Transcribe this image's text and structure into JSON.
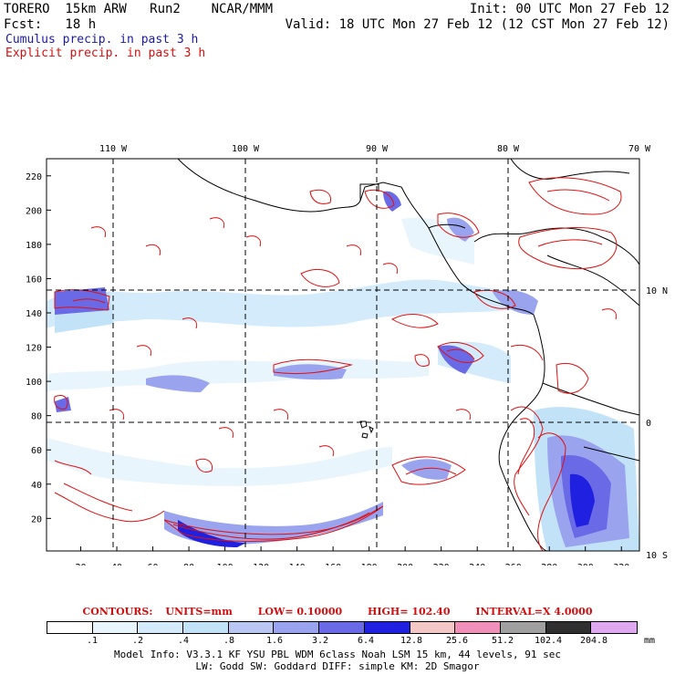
{
  "header": {
    "model": "TORERO  15km ARW   Run2    NCAR/MMM",
    "init": "Init: 00 UTC Mon 27 Feb 12",
    "fcst": "Fcst:   18 h",
    "valid": "Valid: 18 UTC Mon 27 Feb 12 (12 CST Mon 27 Feb 12)",
    "field_cumulus": "Cumulus precip. in past 3 h",
    "field_explicit": "Explicit precip. in past 3 h"
  },
  "colors": {
    "cumulus_text": "#1a1aa8",
    "explicit_text": "#d01010",
    "contour": "#e01010",
    "coast": "#000000"
  },
  "map": {
    "lon_labels": [
      "110 W",
      "100 W",
      "90 W",
      "80 W",
      "70 W"
    ],
    "lat_labels": [
      "10 N",
      "0",
      "10 S"
    ],
    "x_ticks": [
      "20",
      "40",
      "60",
      "80",
      "100",
      "120",
      "140",
      "160",
      "180",
      "200",
      "220",
      "240",
      "260",
      "280",
      "300",
      "320"
    ],
    "y_ticks": [
      "20",
      "40",
      "60",
      "80",
      "100",
      "120",
      "140",
      "160",
      "180",
      "200",
      "220"
    ]
  },
  "contours_line": {
    "label": "CONTOURS:",
    "units": "UNITS=mm",
    "low": "LOW=  0.10000",
    "high": "HIGH=   102.40",
    "interval": "INTERVAL=X  4.0000"
  },
  "legend": {
    "values": [
      ".1",
      ".2",
      ".4",
      ".8",
      "1.6",
      "3.2",
      "6.4",
      "12.8",
      "25.6",
      "51.2",
      "102.4",
      "204.8"
    ],
    "units": "mm",
    "colors": [
      "#ffffff",
      "#e9f5fc",
      "#d3ebfa",
      "#c2e2f7",
      "#b9c7f2",
      "#9aa3ee",
      "#6a6ae6",
      "#2020e0",
      "#f5c8c8",
      "#f090b8",
      "#a0a0a0",
      "#303030",
      "#e0a8f0"
    ]
  },
  "model_info": {
    "line1": "Model Info: V3.3.1   KF    YSU PBL  WDM 6class  Noah LSM  15 km,   44 levels,   91 sec",
    "line2": "LW: Godd SW: Goddard DIFF: simple KM: 2D Smagor"
  }
}
